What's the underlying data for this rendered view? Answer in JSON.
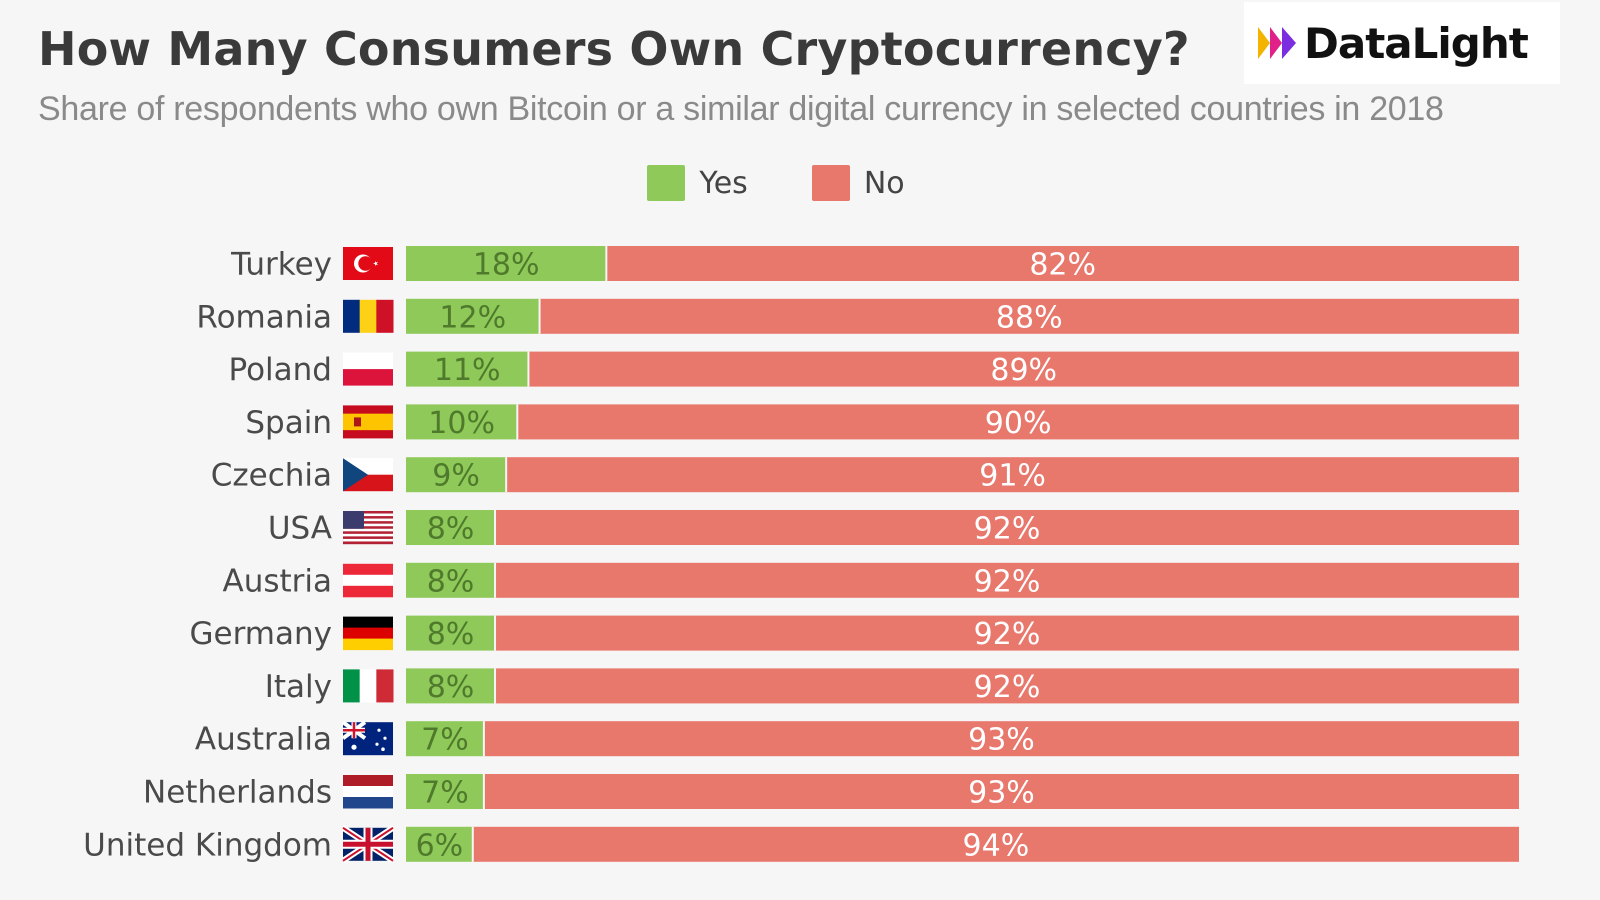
{
  "header": {
    "title": "How Many Consumers Own Cryptocurrency?",
    "subtitle": "Share of respondents who own Bitcoin or a similar digital currency in selected countries in 2018",
    "logo_text": "DataLight"
  },
  "colors": {
    "yes": "#8fc95a",
    "no": "#e8776c",
    "yes_text": "#4f7a2c",
    "no_text": "#ffffff"
  },
  "chart_data": {
    "type": "bar",
    "orientation": "horizontal",
    "stacked": true,
    "title": "How Many Consumers Own Cryptocurrency?",
    "subtitle": "Share of respondents who own Bitcoin or a similar digital currency in selected countries in 2018",
    "legend_position": "top-center",
    "value_suffix": "%",
    "xlim": [
      0,
      100
    ],
    "grid": false,
    "categories": [
      "Turkey",
      "Romania",
      "Poland",
      "Spain",
      "Czechia",
      "USA",
      "Austria",
      "Germany",
      "Italy",
      "Australia",
      "Netherlands",
      "United Kingdom"
    ],
    "flags": [
      "turkey-flag-icon",
      "romania-flag-icon",
      "poland-flag-icon",
      "spain-flag-icon",
      "czechia-flag-icon",
      "usa-flag-icon",
      "austria-flag-icon",
      "germany-flag-icon",
      "italy-flag-icon",
      "australia-flag-icon",
      "netherlands-flag-icon",
      "uk-flag-icon"
    ],
    "series": [
      {
        "name": "Yes",
        "values": [
          18,
          12,
          11,
          10,
          9,
          8,
          8,
          8,
          8,
          7,
          7,
          6
        ]
      },
      {
        "name": "No",
        "values": [
          82,
          88,
          89,
          90,
          91,
          92,
          92,
          92,
          92,
          93,
          93,
          94
        ]
      }
    ]
  }
}
